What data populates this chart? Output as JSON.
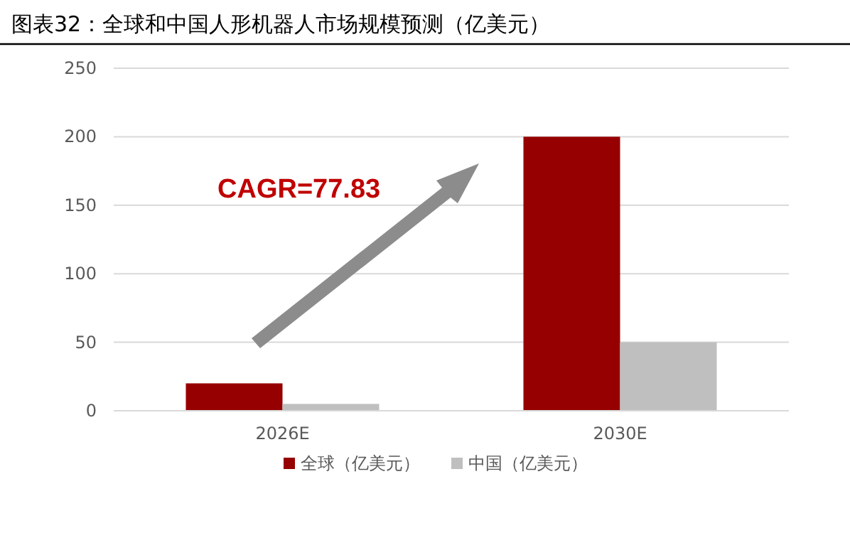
{
  "chart_data": {
    "type": "bar",
    "title": "图表32：全球和中国人形机器人市场规模预测（亿美元）",
    "categories": [
      "2026E",
      "2030E"
    ],
    "series": [
      {
        "name": "全球（亿美元）",
        "color": "#960000",
        "values": [
          20,
          200
        ]
      },
      {
        "name": "中国（亿美元）",
        "color": "#bfbfbf",
        "values": [
          5,
          50
        ]
      }
    ],
    "ylim": [
      0,
      250
    ],
    "yticks": [
      0,
      50,
      100,
      150,
      200,
      250
    ],
    "grid": "y",
    "legend": "bottom",
    "annotations": [
      "CAGR=77.83"
    ]
  }
}
